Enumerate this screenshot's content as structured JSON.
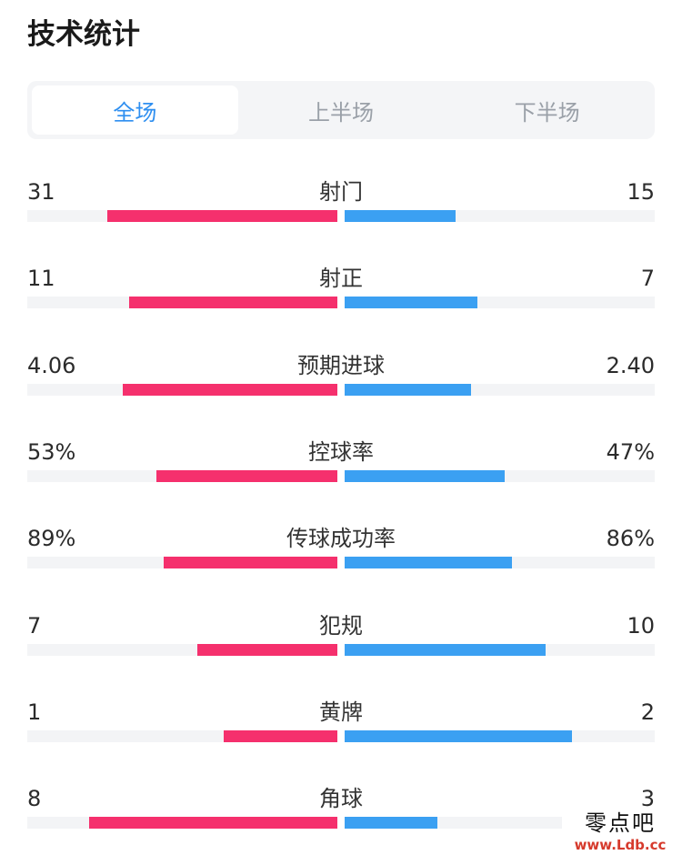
{
  "page_title": "技术统计",
  "tabs": [
    {
      "label": "全场",
      "active": true
    },
    {
      "label": "上半场",
      "active": false
    },
    {
      "label": "下半场",
      "active": false
    }
  ],
  "colors": {
    "home": "#f5306d",
    "away": "#3ba0f2",
    "active_tab": "#2f8ff0"
  },
  "stats": [
    {
      "name": "射门",
      "home": "31",
      "away": "15",
      "home_num": 31,
      "away_num": 15
    },
    {
      "name": "射正",
      "home": "11",
      "away": "7",
      "home_num": 11,
      "away_num": 7
    },
    {
      "name": "预期进球",
      "home": "4.06",
      "away": "2.40",
      "home_num": 4.06,
      "away_num": 2.4
    },
    {
      "name": "控球率",
      "home": "53%",
      "away": "47%",
      "home_num": 53,
      "away_num": 47
    },
    {
      "name": "传球成功率",
      "home": "89%",
      "away": "86%",
      "home_num": 89,
      "away_num": 86
    },
    {
      "name": "犯规",
      "home": "7",
      "away": "10",
      "home_num": 7,
      "away_num": 10
    },
    {
      "name": "黄牌",
      "home": "1",
      "away": "2",
      "home_num": 1,
      "away_num": 2
    },
    {
      "name": "角球",
      "home": "8",
      "away": "3",
      "home_num": 8,
      "away_num": 3
    }
  ],
  "watermark": {
    "cn": "零点吧",
    "url": "www.Ldb.cc"
  }
}
